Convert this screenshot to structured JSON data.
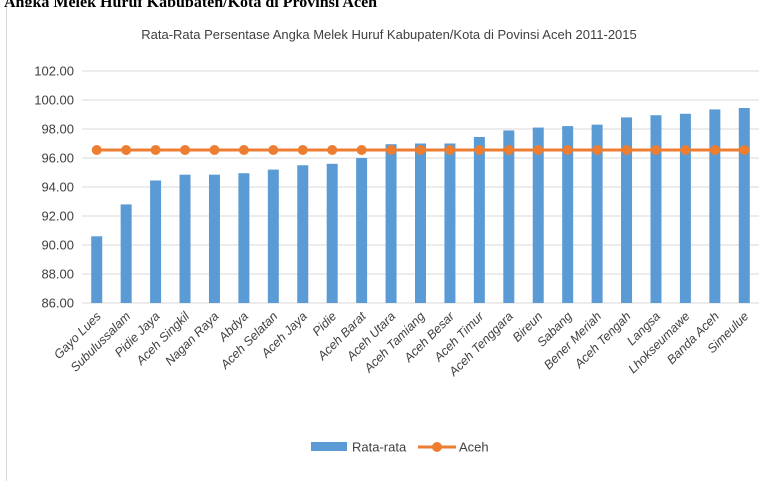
{
  "document": {
    "top_text": "Angka Melek Huruf Kabupaten/Kota di Provinsi Aceh"
  },
  "colors": {
    "bar": "#5b9bd5",
    "line": "#ed7d31",
    "grid": "#d9d9d9",
    "text": "#404040"
  },
  "chart_data": {
    "type": "bar",
    "title": "Rata-Rata Persentase Angka Melek Huruf Kabupaten/Kota di Povinsi Aceh 2011-2015",
    "xlabel": "",
    "ylabel": "",
    "ylim": [
      86,
      102
    ],
    "yticks": [
      "86.00",
      "88.00",
      "90.00",
      "92.00",
      "94.00",
      "96.00",
      "98.00",
      "100.00",
      "102.00"
    ],
    "grid": true,
    "legend_position": "bottom",
    "categories": [
      "Gayo Lues",
      "Subulussalam",
      "Pidie Jaya",
      "Aceh Singkil",
      "Nagan Raya",
      "Abdya",
      "Aceh Selatan",
      "Aceh Jaya",
      "Pidie",
      "Aceh Barat",
      "Aceh Utara",
      "Aceh Tamiang",
      "Aceh Besar",
      "Aceh Timur",
      "Aceh Tenggara",
      "Bireun",
      "Sabang",
      "Bener Meriah",
      "Aceh Tengah",
      "Langsa",
      "Lhokseumawe",
      "Banda Aceh",
      "Simeulue"
    ],
    "series": [
      {
        "name": "Rata-rata",
        "type": "bar",
        "values": [
          90.6,
          92.8,
          94.45,
          94.85,
          94.85,
          94.95,
          95.2,
          95.5,
          95.6,
          96.0,
          96.95,
          97.0,
          97.0,
          97.45,
          97.9,
          98.1,
          98.2,
          98.3,
          98.8,
          98.95,
          99.05,
          99.35,
          99.45
        ]
      },
      {
        "name": "Aceh",
        "type": "line",
        "values": [
          96.55,
          96.55,
          96.55,
          96.55,
          96.55,
          96.55,
          96.55,
          96.55,
          96.55,
          96.55,
          96.55,
          96.55,
          96.55,
          96.55,
          96.55,
          96.55,
          96.55,
          96.55,
          96.55,
          96.55,
          96.55,
          96.55,
          96.55
        ]
      }
    ]
  }
}
